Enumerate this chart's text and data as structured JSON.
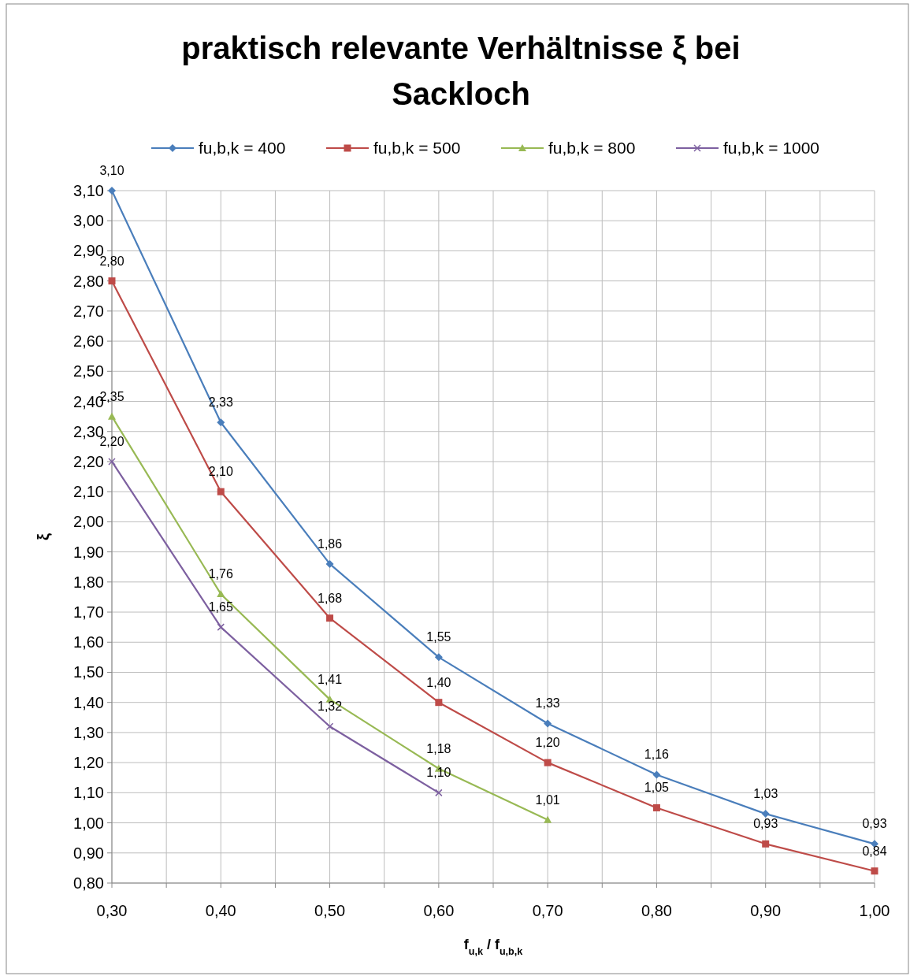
{
  "chart_data": {
    "type": "line",
    "title": "praktisch relevante Verhältnisse ξ bei Sackloch",
    "xlabel": "f$_{u,k}$ / f$_{u,b,k}$",
    "ylabel": "ξ",
    "x": [
      0.3,
      0.4,
      0.5,
      0.6,
      0.7,
      0.8,
      0.9,
      1.0
    ],
    "series": [
      {
        "name": "fu,b,k = 400",
        "color": "#4a7ebb",
        "marker": "diamond",
        "values": [
          3.1,
          2.33,
          1.86,
          1.55,
          1.33,
          1.16,
          1.03,
          0.93
        ],
        "value_labels": [
          "3,10",
          "2,33",
          "1,86",
          "1,55",
          "1,33",
          "1,16",
          "1,03",
          "0,93"
        ]
      },
      {
        "name": "fu,b,k = 500",
        "color": "#be4b48",
        "marker": "square",
        "values": [
          2.8,
          2.1,
          1.68,
          1.4,
          1.2,
          1.05,
          0.93,
          0.84
        ],
        "value_labels": [
          "2,80",
          "2,10",
          "1,68",
          "1,40",
          "1,20",
          "1,05",
          "0,93",
          "0,84"
        ]
      },
      {
        "name": "fu,b,k = 800",
        "color": "#98b954",
        "marker": "triangle",
        "values": [
          2.35,
          1.76,
          1.41,
          1.18,
          1.01,
          null,
          null,
          null
        ],
        "value_labels": [
          "2,35",
          "1,76",
          "1,41",
          "1,18",
          "1,01",
          null,
          null,
          null
        ]
      },
      {
        "name": "fu,b,k = 1000",
        "color": "#7d60a0",
        "marker": "cross",
        "values": [
          2.2,
          1.65,
          1.32,
          1.1,
          null,
          null,
          null,
          null
        ],
        "value_labels": [
          "2,20",
          "1,65",
          "1,32",
          "1,10",
          null,
          null,
          null,
          null
        ]
      }
    ],
    "xlim": [
      0.3,
      1.0
    ],
    "xticks": [
      {
        "value": 0.3,
        "label": "0,30"
      },
      {
        "value": 0.35,
        "label": null
      },
      {
        "value": 0.4,
        "label": "0,40"
      },
      {
        "value": 0.45,
        "label": null
      },
      {
        "value": 0.5,
        "label": "0,50"
      },
      {
        "value": 0.55,
        "label": null
      },
      {
        "value": 0.6,
        "label": "0,60"
      },
      {
        "value": 0.65,
        "label": null
      },
      {
        "value": 0.7,
        "label": "0,70"
      },
      {
        "value": 0.75,
        "label": null
      },
      {
        "value": 0.8,
        "label": "0,80"
      },
      {
        "value": 0.85,
        "label": null
      },
      {
        "value": 0.9,
        "label": "0,90"
      },
      {
        "value": 0.95,
        "label": null
      },
      {
        "value": 1.0,
        "label": "1,00"
      }
    ],
    "ylim": [
      0.8,
      3.1
    ],
    "yticks": [
      {
        "value": 0.8,
        "label": "0,80"
      },
      {
        "value": 0.9,
        "label": "0,90"
      },
      {
        "value": 1.0,
        "label": "1,00"
      },
      {
        "value": 1.1,
        "label": "1,10"
      },
      {
        "value": 1.2,
        "label": "1,20"
      },
      {
        "value": 1.3,
        "label": "1,30"
      },
      {
        "value": 1.4,
        "label": "1,40"
      },
      {
        "value": 1.5,
        "label": "1,50"
      },
      {
        "value": 1.6,
        "label": "1,60"
      },
      {
        "value": 1.7,
        "label": "1,70"
      },
      {
        "value": 1.8,
        "label": "1,80"
      },
      {
        "value": 1.9,
        "label": "1,90"
      },
      {
        "value": 2.0,
        "label": "2,00"
      },
      {
        "value": 2.1,
        "label": "2,10"
      },
      {
        "value": 2.2,
        "label": "2,20"
      },
      {
        "value": 2.3,
        "label": "2,30"
      },
      {
        "value": 2.4,
        "label": "2,40"
      },
      {
        "value": 2.5,
        "label": "2,50"
      },
      {
        "value": 2.6,
        "label": "2,60"
      },
      {
        "value": 2.7,
        "label": "2,70"
      },
      {
        "value": 2.8,
        "label": "2,80"
      },
      {
        "value": 2.9,
        "label": "2,90"
      },
      {
        "value": 3.0,
        "label": "3,00"
      },
      {
        "value": 3.1,
        "label": "3,10"
      }
    ],
    "grid": true,
    "legend": "top",
    "line_style": "solid"
  }
}
